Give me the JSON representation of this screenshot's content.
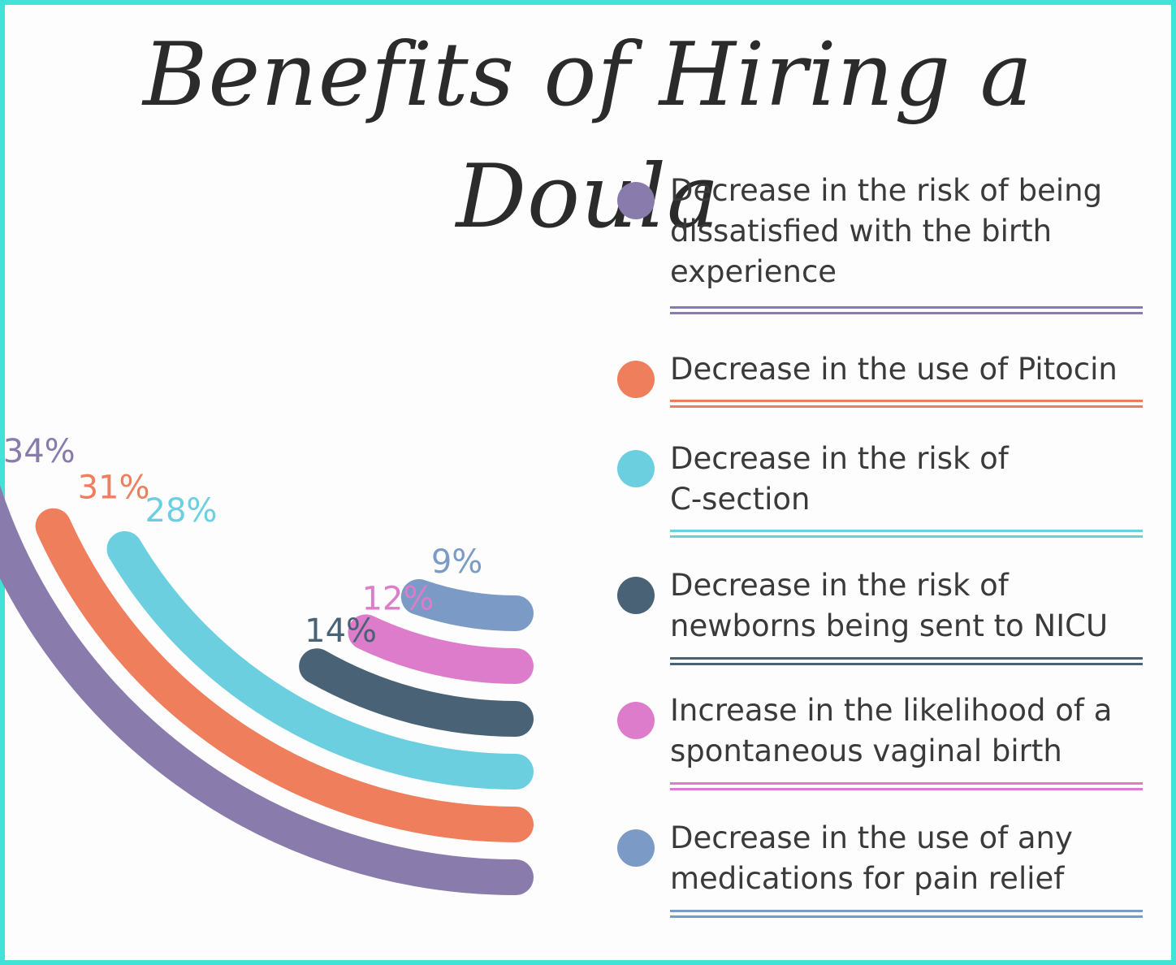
{
  "title": "Benefits of Hiring a Doula",
  "chart_data": {
    "type": "radial-bar",
    "title": "Benefits of Hiring a Doula",
    "unit": "%",
    "series": [
      {
        "label": "Decrease in the risk of being dissatisfied with the birth experience",
        "value": 34,
        "value_label": "34%",
        "color": "#8a7bad"
      },
      {
        "label": "Decrease in the use of Pitocin",
        "value": 31,
        "value_label": "31%",
        "color": "#ef7e5c"
      },
      {
        "label": "Decrease in the risk of C-section",
        "value": 28,
        "value_label": "28%",
        "color": "#6ccfdf"
      },
      {
        "label": "Decrease in the risk of newborns being sent to NICU",
        "value": 14,
        "value_label": "14%",
        "color": "#4a6275"
      },
      {
        "label": "Increase in the likelihood of a spontaneous vaginal birth",
        "value": 12,
        "value_label": "12%",
        "color": "#dd7ccb"
      },
      {
        "label": "Decrease in the use of any medications for pain relief",
        "value": 9,
        "value_label": "9%",
        "color": "#7b9ac6"
      }
    ]
  },
  "legend": {
    "items": [
      {
        "text": "Decrease in the risk of being dissatisfied with the birth experience",
        "color": "#8a7bad"
      },
      {
        "text": "Decrease in the use of Pitocin",
        "color": "#ef7e5c"
      },
      {
        "text": "Decrease in the risk of C-section",
        "color": "#6ccfdf"
      },
      {
        "text": "Decrease in the risk of newborns being sent to NICU",
        "color": "#4a6275"
      },
      {
        "text": "Increase in the likelihood of a spontaneous vaginal birth",
        "color": "#dd7ccb"
      },
      {
        "text": "Decrease in the use of any medications for pain relief",
        "color": "#7b9ac6"
      }
    ]
  },
  "frame_color": "#3fe3d8"
}
